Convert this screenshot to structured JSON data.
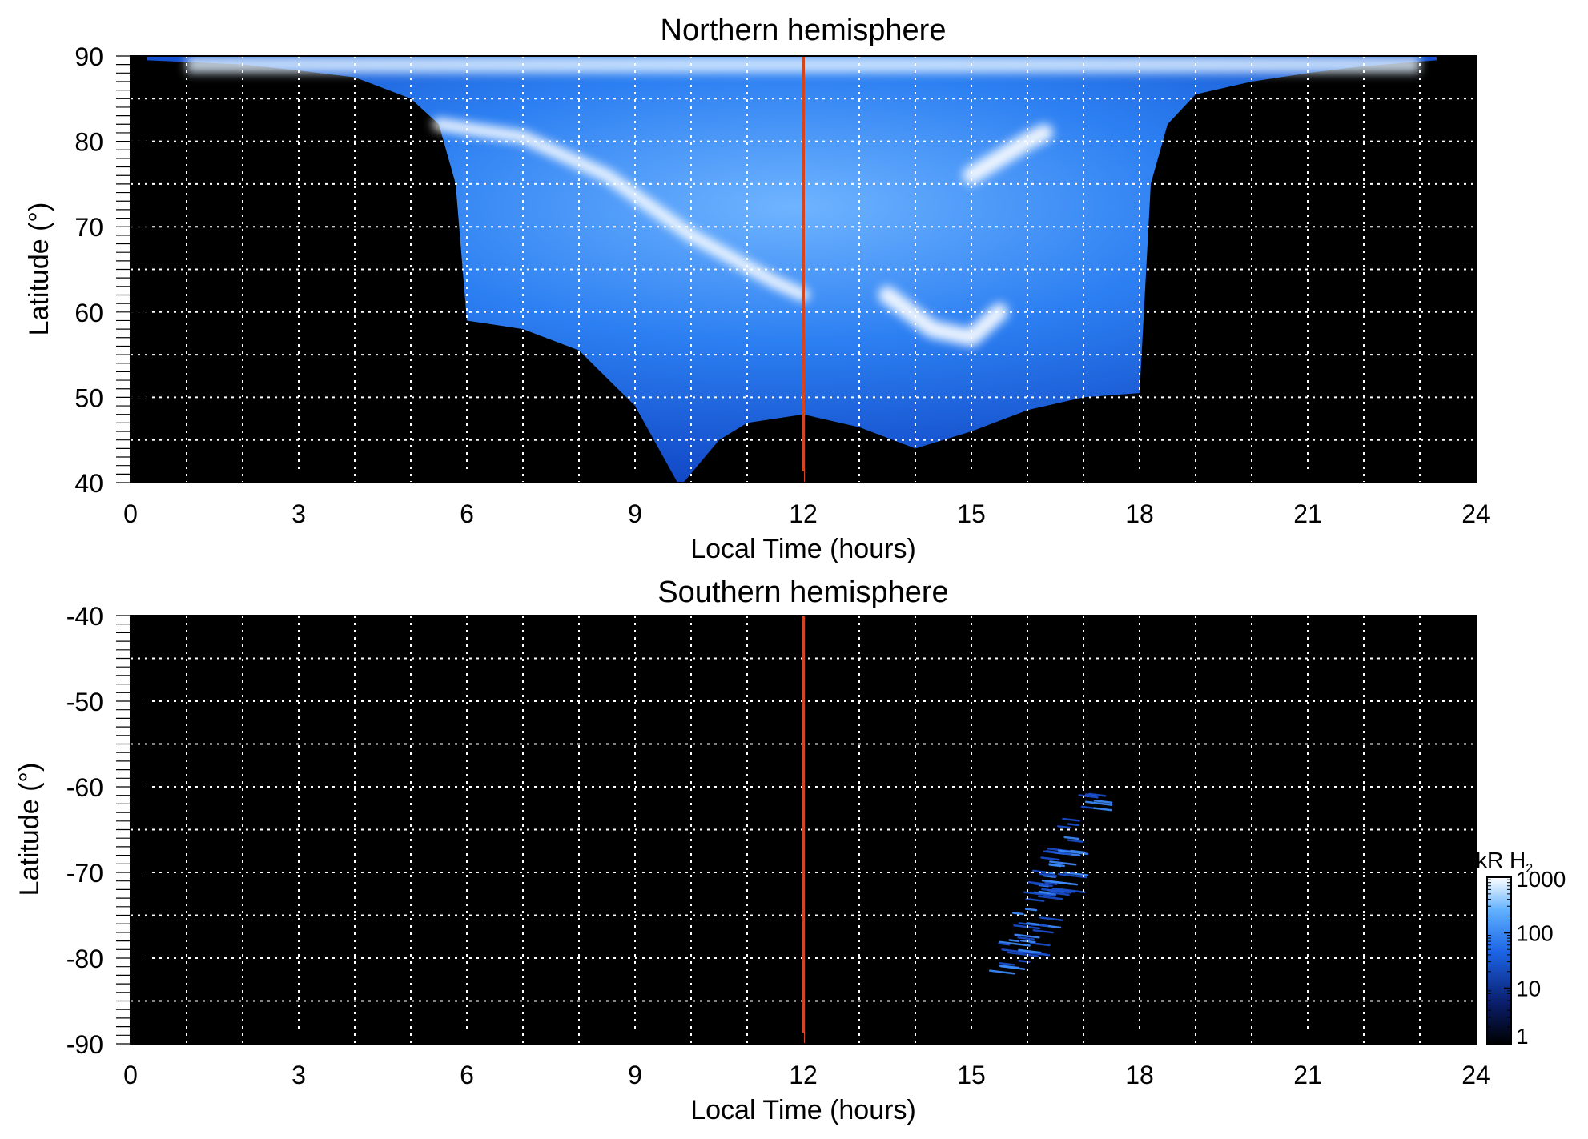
{
  "chart_data": [
    {
      "type": "heatmap",
      "title": "Northern hemisphere",
      "xlabel": "Local Time (hours)",
      "ylabel": "Latitude (°)",
      "xlim": [
        0,
        24
      ],
      "ylim": [
        40,
        90
      ],
      "xticks": [
        "0",
        "3",
        "6",
        "9",
        "12",
        "15",
        "18",
        "21",
        "24"
      ],
      "xtick_values": [
        0,
        3,
        6,
        9,
        12,
        15,
        18,
        21,
        24
      ],
      "yticks": [
        "40",
        "50",
        "60",
        "70",
        "80",
        "90"
      ],
      "ytick_values": [
        40,
        50,
        60,
        70,
        80,
        90
      ],
      "grid": true,
      "grid_x_values": [
        1,
        2,
        3,
        4,
        5,
        6,
        7,
        8,
        9,
        10,
        11,
        12,
        13,
        14,
        15,
        16,
        17,
        18,
        19,
        20,
        21,
        22,
        23
      ],
      "grid_y_values": [
        45,
        50,
        55,
        60,
        65,
        70,
        75,
        80,
        85
      ],
      "marker_line_x": 12,
      "marker_color": "#d2451e",
      "coverage_boundary": [
        [
          0.3,
          89.5
        ],
        [
          2,
          89
        ],
        [
          3,
          88.3
        ],
        [
          4,
          87.5
        ],
        [
          5,
          85
        ],
        [
          5.5,
          82
        ],
        [
          5.8,
          75
        ],
        [
          6,
          59
        ],
        [
          7,
          58
        ],
        [
          8,
          55.5
        ],
        [
          9,
          49
        ],
        [
          9.8,
          39.5
        ],
        [
          10.5,
          45
        ],
        [
          11,
          47
        ],
        [
          12,
          48
        ],
        [
          13,
          46.5
        ],
        [
          14,
          44
        ],
        [
          15,
          46
        ],
        [
          16,
          48.5
        ],
        [
          17,
          50
        ],
        [
          18,
          50.5
        ],
        [
          18.2,
          75
        ],
        [
          18.5,
          82
        ],
        [
          19,
          85.5
        ],
        [
          20,
          87
        ],
        [
          21,
          88
        ],
        [
          22,
          88.8
        ],
        [
          23.3,
          89.5
        ]
      ],
      "emission_features": [
        {
          "lt": [
            5.5,
            7,
            8.5,
            10,
            11.5,
            12
          ],
          "lat": [
            82,
            80.5,
            76,
            69,
            63.5,
            62
          ]
        },
        {
          "lt": [
            15,
            15.5,
            16,
            16.3
          ],
          "lat": [
            76,
            78,
            80,
            81
          ]
        },
        {
          "lt": [
            13.5,
            14.3,
            15,
            15.5
          ],
          "lat": [
            62,
            58,
            57,
            60
          ]
        }
      ]
    },
    {
      "type": "heatmap",
      "title": "Southern hemisphere",
      "xlabel": "Local Time (hours)",
      "ylabel": "Latitude (°)",
      "xlim": [
        0,
        24
      ],
      "ylim": [
        -90,
        -40
      ],
      "xticks": [
        "0",
        "3",
        "6",
        "9",
        "12",
        "15",
        "18",
        "21",
        "24"
      ],
      "xtick_values": [
        0,
        3,
        6,
        9,
        12,
        15,
        18,
        21,
        24
      ],
      "yticks": [
        "-40",
        "-50",
        "-60",
        "-70",
        "-80",
        "-90"
      ],
      "ytick_values": [
        -40,
        -50,
        -60,
        -70,
        -80,
        -90
      ],
      "grid": true,
      "grid_x_values": [
        1,
        2,
        3,
        4,
        5,
        6,
        7,
        8,
        9,
        10,
        11,
        12,
        13,
        14,
        15,
        16,
        17,
        18,
        19,
        20,
        21,
        22,
        23
      ],
      "grid_y_values": [
        -45,
        -50,
        -55,
        -60,
        -65,
        -70,
        -75,
        -80,
        -85
      ],
      "marker_line_x": 12,
      "marker_color": "#d2451e",
      "emission_region": {
        "lt": [
          15,
          17.5
        ],
        "lat": [
          -82,
          -60
        ]
      }
    }
  ],
  "colorbar": {
    "title_main": "kR H",
    "title_sub": "2",
    "scale": "log",
    "ticks": [
      "1",
      "10",
      "100",
      "1000"
    ],
    "tick_values": [
      1,
      10,
      100,
      1000
    ],
    "colors": [
      "#000000",
      "#0a1f6e",
      "#1c64e6",
      "#5fb0ff",
      "#ffffff"
    ]
  }
}
